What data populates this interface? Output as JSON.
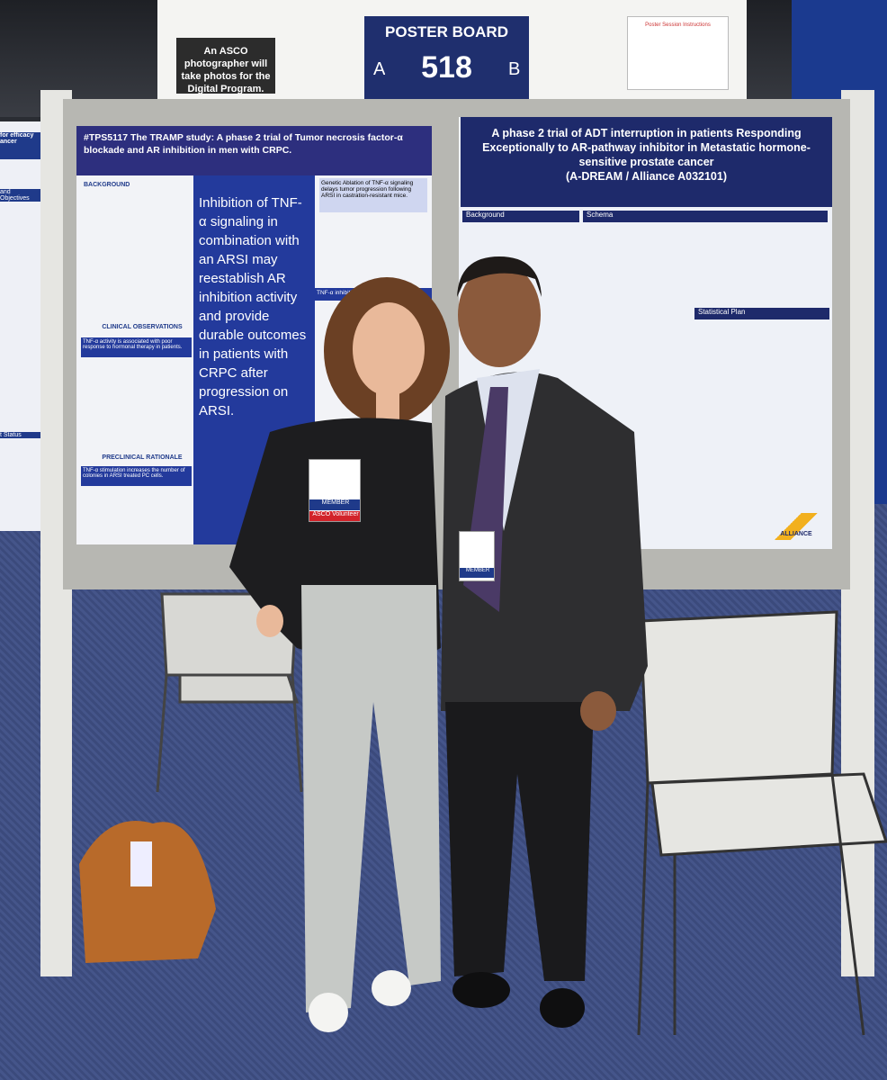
{
  "sign": {
    "photographer_note": "An ASCO photographer will take photos for the Digital Program.",
    "board_label": "POSTER BOARD",
    "side_a": "A",
    "board_number": "518",
    "side_b": "B",
    "instructions_title": "Poster Session Instructions"
  },
  "edge_poster": {
    "title_fragment": "for efficacy ancer",
    "section": "and Objectives",
    "status": "t Status"
  },
  "left_poster": {
    "title": "#TPS5117   The TRAMP study: A phase 2 trial of Tumor necrosis factor-α blockade and AR inhibition in men with CRPC.",
    "highlight": "Inhibition of TNF-α signaling in combination with an ARSI may reestablish AR inhibition activity and provide durable outcomes in patients with CRPC after progression on ARSI.",
    "sections": [
      "BACKGROUND",
      "CLINICAL OBSERVATIONS",
      "PRECLINICAL RATIONALE"
    ],
    "figure_headings": [
      "Genetic Ablation of TNF-α signaling delays tumor progression following ARSI in castration-resistant mice.",
      "TNF-α inhibition rescues ARSI activity.",
      "TNF-α activity is associated with poor response to hormonal therapy in patients.",
      "TNF-α stimulation increases the number of colonies in ARSI treated PC cells."
    ]
  },
  "right_poster": {
    "title": "A phase 2 trial of ADT interruption in patients Responding Exceptionally to AR-pathway inhibitor in Metastatic hormone-sensitive prostate cancer",
    "subtitle": "(A-DREAM / Alliance A032101)",
    "sections": [
      "Background",
      "Schema",
      "Statistical Plan"
    ],
    "logo": "ALLIANCE"
  },
  "badges": {
    "volunteer_member": "MEMBER",
    "volunteer": "ASCO Volunteer",
    "presenter_member": "MEMBER"
  }
}
